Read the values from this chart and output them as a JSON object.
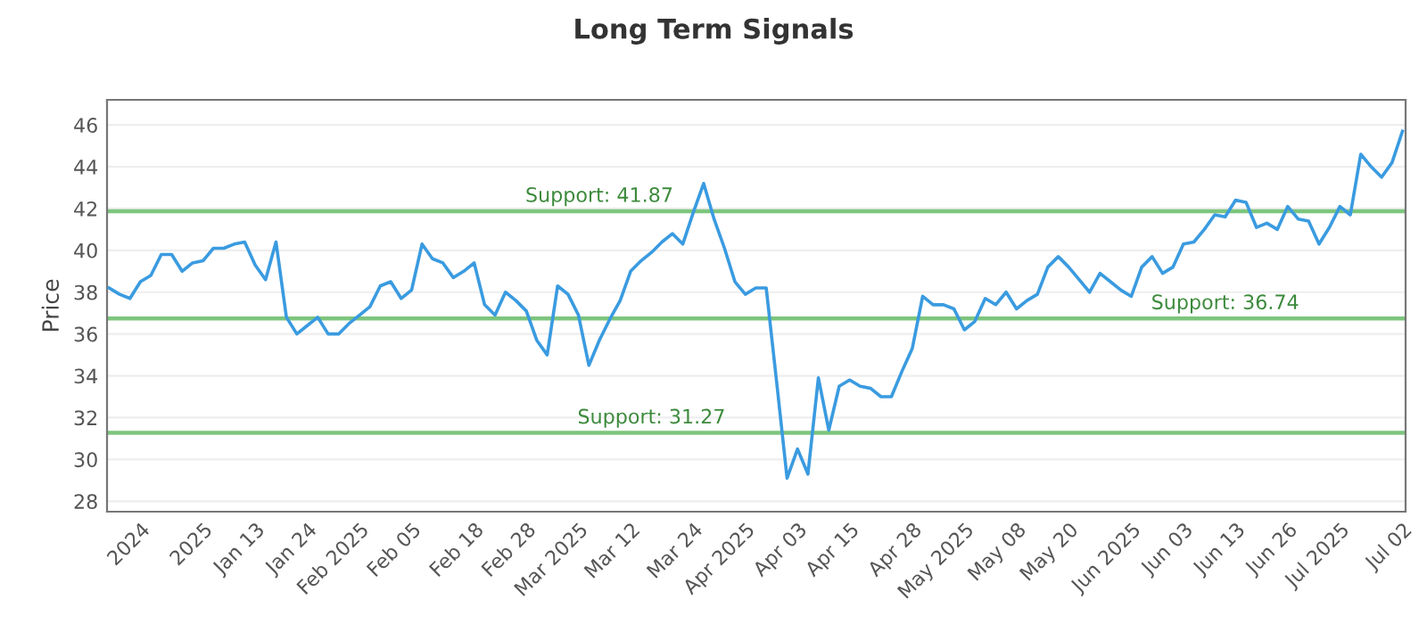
{
  "chart_data": {
    "type": "line",
    "title": "Long Term Signals",
    "ylabel": "Price",
    "categories": [
      null,
      null,
      null,
      "2024",
      null,
      null,
      null,
      null,
      null,
      "2025",
      null,
      null,
      null,
      null,
      "Jan 13",
      null,
      null,
      null,
      null,
      "Jan 24",
      null,
      null,
      null,
      null,
      "Feb 2025",
      null,
      null,
      null,
      null,
      "Feb 05",
      null,
      null,
      null,
      null,
      null,
      "Feb 18",
      null,
      null,
      null,
      null,
      "Feb 28",
      null,
      null,
      null,
      null,
      "Mar 2025",
      null,
      null,
      null,
      null,
      "Mar 12",
      null,
      null,
      null,
      null,
      null,
      "Mar 24",
      null,
      null,
      null,
      null,
      "Apr 2025",
      null,
      null,
      null,
      null,
      "Apr 03",
      null,
      null,
      null,
      null,
      "Apr 15",
      null,
      null,
      null,
      null,
      null,
      "Apr 28",
      null,
      null,
      null,
      null,
      "May 2025",
      null,
      null,
      null,
      null,
      "May 08",
      null,
      null,
      null,
      null,
      "May 20",
      null,
      null,
      null,
      null,
      null,
      "Jun 2025",
      null,
      null,
      null,
      null,
      "Jun 03",
      null,
      null,
      null,
      null,
      "Jun 13",
      null,
      null,
      null,
      null,
      "Jun 26",
      null,
      null,
      null,
      null,
      "Jul 2025",
      null,
      null,
      null,
      null,
      null,
      "Jul 02"
    ],
    "series": [
      {
        "color": "#3a9be0",
        "values": [
          38.2,
          37.9,
          37.7,
          38.5,
          38.8,
          39.8,
          39.8,
          39.0,
          39.4,
          39.5,
          40.1,
          40.1,
          40.3,
          40.4,
          39.3,
          38.6,
          40.4,
          36.8,
          36.0,
          36.4,
          36.8,
          36.0,
          36.0,
          36.5,
          36.9,
          37.3,
          38.3,
          38.5,
          37.7,
          38.1,
          40.3,
          39.6,
          39.4,
          38.7,
          39.0,
          39.4,
          37.4,
          36.9,
          38.0,
          37.6,
          37.1,
          35.7,
          35.0,
          38.3,
          37.9,
          36.9,
          34.5,
          35.7,
          36.7,
          37.6,
          39.0,
          39.5,
          39.9,
          40.4,
          40.8,
          40.3,
          41.8,
          43.2,
          41.5,
          40.1,
          38.5,
          37.9,
          38.2,
          38.2,
          33.7,
          29.1,
          30.5,
          29.3,
          33.9,
          31.4,
          33.5,
          33.8,
          33.5,
          33.4,
          33.0,
          33.0,
          34.2,
          35.3,
          37.8,
          37.4,
          37.4,
          37.2,
          36.2,
          36.6,
          37.7,
          37.4,
          38.0,
          37.2,
          37.6,
          37.9,
          39.2,
          39.7,
          39.2,
          38.6,
          38.0,
          38.9,
          38.5,
          38.1,
          37.8,
          39.2,
          39.7,
          38.9,
          39.2,
          40.3,
          40.4,
          41.0,
          41.7,
          41.6,
          42.4,
          42.3,
          41.1,
          41.3,
          41.0,
          42.1,
          41.5,
          41.4,
          40.3,
          41.1,
          42.1,
          41.7,
          44.6,
          44.0,
          43.5,
          44.2,
          45.7
        ]
      }
    ],
    "ylim": [
      27.5,
      47.2
    ],
    "yticks": [
      28,
      30,
      32,
      34,
      36,
      38,
      40,
      42,
      44,
      46
    ],
    "grid": "y",
    "ref_lines": [
      {
        "axis": "y",
        "value": 41.87,
        "label": "Support: 41.87",
        "color": "#7dc57d"
      },
      {
        "axis": "y",
        "value": 36.74,
        "label": "Support: 36.74",
        "color": "#7dc57d"
      },
      {
        "axis": "y",
        "value": 31.27,
        "label": "Support: 31.27",
        "color": "#7dc57d"
      }
    ]
  }
}
